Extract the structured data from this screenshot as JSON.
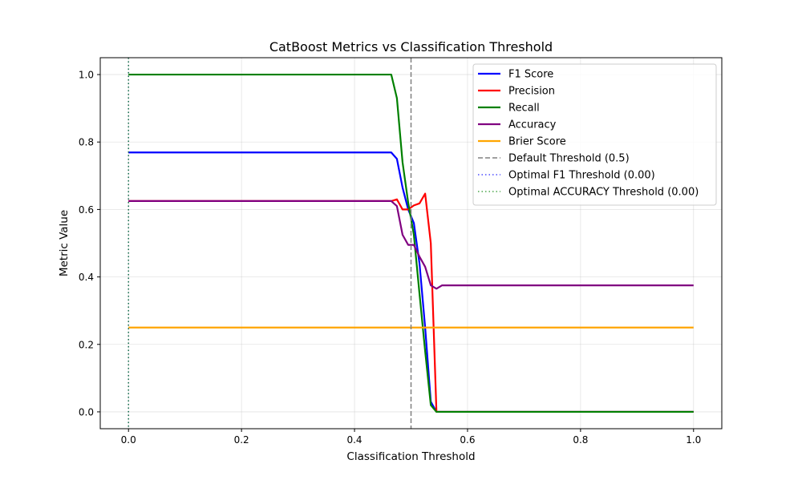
{
  "chart_data": {
    "type": "line",
    "title": "CatBoost Metrics vs Classification Threshold",
    "xlabel": "Classification Threshold",
    "ylabel": "Metric Value",
    "xlim": [
      -0.05,
      1.05
    ],
    "ylim": [
      -0.05,
      1.05
    ],
    "xticks": [
      0.0,
      0.2,
      0.4,
      0.6,
      0.8,
      1.0
    ],
    "xtick_labels": [
      "0.0",
      "0.2",
      "0.4",
      "0.6",
      "0.8",
      "1.0"
    ],
    "yticks": [
      0.0,
      0.2,
      0.4,
      0.6,
      0.8,
      1.0
    ],
    "ytick_labels": [
      "0.0",
      "0.2",
      "0.4",
      "0.6",
      "0.8",
      "1.0"
    ],
    "grid": true,
    "legend_position": "top-right",
    "series": [
      {
        "name": "F1 Score",
        "color": "#0000ff",
        "style": "solid",
        "x": [
          0.0,
          0.465,
          0.475,
          0.485,
          0.495,
          0.505,
          0.515,
          0.525,
          0.535,
          0.545,
          0.555,
          1.0
        ],
        "y": [
          0.769,
          0.769,
          0.75,
          0.665,
          0.6,
          0.56,
          0.44,
          0.25,
          0.03,
          0.0,
          0.0,
          0.0
        ]
      },
      {
        "name": "Precision",
        "color": "#ff0000",
        "style": "solid",
        "x": [
          0.0,
          0.465,
          0.475,
          0.485,
          0.495,
          0.505,
          0.515,
          0.525,
          0.535,
          0.545,
          0.555,
          1.0
        ],
        "y": [
          0.625,
          0.625,
          0.63,
          0.6,
          0.6,
          0.612,
          0.618,
          0.647,
          0.5,
          0.0,
          0.0,
          0.0
        ]
      },
      {
        "name": "Recall",
        "color": "#008000",
        "style": "solid",
        "x": [
          0.0,
          0.465,
          0.475,
          0.485,
          0.495,
          0.505,
          0.515,
          0.525,
          0.535,
          0.545,
          0.555,
          1.0
        ],
        "y": [
          1.0,
          1.0,
          0.93,
          0.74,
          0.62,
          0.525,
          0.35,
          0.18,
          0.02,
          0.0,
          0.0,
          0.0
        ]
      },
      {
        "name": "Accuracy",
        "color": "#800080",
        "style": "solid",
        "x": [
          0.0,
          0.465,
          0.475,
          0.485,
          0.495,
          0.505,
          0.515,
          0.525,
          0.535,
          0.545,
          0.555,
          1.0
        ],
        "y": [
          0.625,
          0.625,
          0.61,
          0.525,
          0.495,
          0.495,
          0.46,
          0.43,
          0.375,
          0.365,
          0.375,
          0.375
        ]
      },
      {
        "name": "Brier Score",
        "color": "#ffa500",
        "style": "solid",
        "x": [
          0.0,
          1.0
        ],
        "y": [
          0.25,
          0.25
        ]
      }
    ],
    "vlines": [
      {
        "name": "Default Threshold (0.5)",
        "x": 0.5,
        "color": "#808080",
        "style": "dashed"
      },
      {
        "name": "Optimal F1 Threshold (0.00)",
        "x": 0.0,
        "color": "#0000ff",
        "style": "dotted"
      },
      {
        "name": "Optimal ACCURACY Threshold (0.00)",
        "x": 0.0,
        "color": "#008000",
        "style": "dotted"
      }
    ]
  }
}
